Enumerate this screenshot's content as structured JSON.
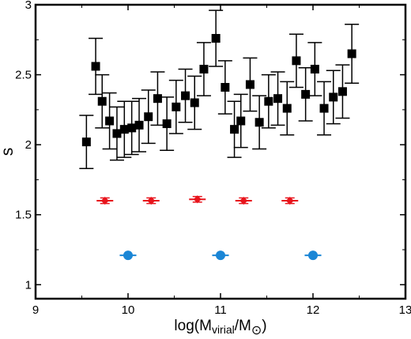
{
  "chart_data": {
    "type": "scatter",
    "title": "",
    "xlabel_parts": {
      "pre": "log(M",
      "sub1": "virial",
      "mid": "/M",
      "sub2": "⊙",
      "post": ")"
    },
    "ylabel": "s",
    "xlim": [
      9,
      13
    ],
    "ylim": [
      0.9,
      3.0
    ],
    "xticks": [
      9,
      10,
      11,
      12,
      13
    ],
    "xtick_labels": [
      "9",
      "10",
      "11",
      "12",
      "13"
    ],
    "yticks": [
      1,
      1.5,
      2,
      2.5,
      3
    ],
    "ytick_labels": [
      "1",
      "1.5",
      "2",
      "2.5",
      "3"
    ],
    "grid": false,
    "series": [
      {
        "marker": "square",
        "color": "#000000",
        "points": [
          {
            "x": 9.55,
            "y": 2.02,
            "yerr": 0.19
          },
          {
            "x": 9.65,
            "y": 2.56,
            "yerr": 0.2
          },
          {
            "x": 9.72,
            "y": 2.31,
            "yerr": 0.19
          },
          {
            "x": 9.8,
            "y": 2.17,
            "yerr": 0.2
          },
          {
            "x": 9.88,
            "y": 2.08,
            "yerr": 0.19
          },
          {
            "x": 9.96,
            "y": 2.11,
            "yerr": 0.2
          },
          {
            "x": 10.04,
            "y": 2.12,
            "yerr": 0.19
          },
          {
            "x": 10.12,
            "y": 2.14,
            "yerr": 0.19
          },
          {
            "x": 10.22,
            "y": 2.2,
            "yerr": 0.19
          },
          {
            "x": 10.32,
            "y": 2.33,
            "yerr": 0.19
          },
          {
            "x": 10.42,
            "y": 2.15,
            "yerr": 0.19
          },
          {
            "x": 10.52,
            "y": 2.27,
            "yerr": 0.19
          },
          {
            "x": 10.62,
            "y": 2.35,
            "yerr": 0.19
          },
          {
            "x": 10.72,
            "y": 2.3,
            "yerr": 0.19
          },
          {
            "x": 10.82,
            "y": 2.54,
            "yerr": 0.19
          },
          {
            "x": 10.95,
            "y": 2.76,
            "yerr": 0.2
          },
          {
            "x": 11.05,
            "y": 2.41,
            "yerr": 0.19
          },
          {
            "x": 11.15,
            "y": 2.11,
            "yerr": 0.2
          },
          {
            "x": 11.22,
            "y": 2.17,
            "yerr": 0.19
          },
          {
            "x": 11.32,
            "y": 2.43,
            "yerr": 0.19
          },
          {
            "x": 11.42,
            "y": 2.16,
            "yerr": 0.19
          },
          {
            "x": 11.52,
            "y": 2.31,
            "yerr": 0.19
          },
          {
            "x": 11.62,
            "y": 2.33,
            "yerr": 0.19
          },
          {
            "x": 11.72,
            "y": 2.26,
            "yerr": 0.19
          },
          {
            "x": 11.82,
            "y": 2.6,
            "yerr": 0.19
          },
          {
            "x": 11.92,
            "y": 2.36,
            "yerr": 0.19
          },
          {
            "x": 12.02,
            "y": 2.54,
            "yerr": 0.19
          },
          {
            "x": 12.12,
            "y": 2.26,
            "yerr": 0.19
          },
          {
            "x": 12.22,
            "y": 2.34,
            "yerr": 0.19
          },
          {
            "x": 12.32,
            "y": 2.38,
            "yerr": 0.19
          },
          {
            "x": 12.42,
            "y": 2.65,
            "yerr": 0.21
          }
        ]
      },
      {
        "marker": "diamond",
        "color": "#e8141c",
        "points": [
          {
            "x": 9.75,
            "y": 1.6,
            "xerr": 0.09,
            "yerr": 0.02
          },
          {
            "x": 10.25,
            "y": 1.6,
            "xerr": 0.09,
            "yerr": 0.02
          },
          {
            "x": 10.75,
            "y": 1.61,
            "xerr": 0.09,
            "yerr": 0.02
          },
          {
            "x": 11.25,
            "y": 1.6,
            "xerr": 0.09,
            "yerr": 0.02
          },
          {
            "x": 11.75,
            "y": 1.6,
            "xerr": 0.09,
            "yerr": 0.02
          }
        ]
      },
      {
        "marker": "circle",
        "color": "#1a86d6",
        "points": [
          {
            "x": 10.0,
            "y": 1.21,
            "xerr": 0.09
          },
          {
            "x": 11.0,
            "y": 1.21,
            "xerr": 0.09
          },
          {
            "x": 12.0,
            "y": 1.21,
            "xerr": 0.09
          }
        ]
      }
    ]
  }
}
